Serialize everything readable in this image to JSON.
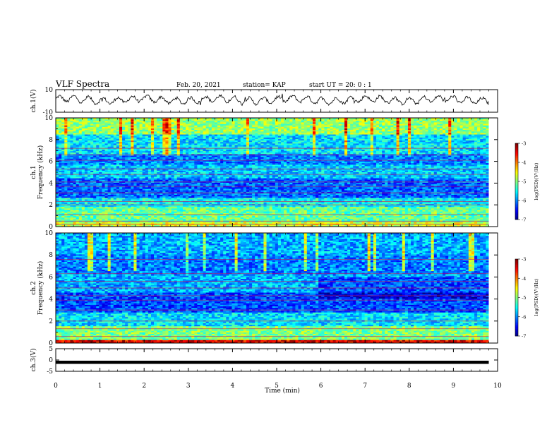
{
  "header": {
    "title": "VLF Spectra",
    "date": "Feb. 20, 2021",
    "station": "station= KAP",
    "start": "start  UT =   20: 0  : 1"
  },
  "chart_data": [
    {
      "id": "ch1-waveform",
      "type": "line",
      "ylabel": "ch.1(V)",
      "ylim": [
        -10,
        10
      ],
      "yticks": [
        "10",
        "-10"
      ],
      "xlim": [
        0,
        10
      ],
      "x_end_min": 9.8,
      "series": [
        {
          "summary": "noisy waveform oscillating roughly between -4 and 6 V with ~0.3 min period"
        }
      ]
    },
    {
      "id": "ch1-spectrogram",
      "type": "heatmap",
      "ylabel": "ch.1\nFrequency (kHz)",
      "ylim": [
        0,
        10
      ],
      "yticks": [
        "0",
        "2",
        "4",
        "6",
        "8",
        "10"
      ],
      "xlim": [
        0,
        10
      ],
      "x_end_min": 9.8,
      "bands_khz": [
        {
          "from": 0.0,
          "to": 0.35,
          "level": -4.6
        },
        {
          "from": 0.35,
          "to": 1.8,
          "level": -5.1
        },
        {
          "from": 1.8,
          "to": 2.6,
          "level": -5.5
        },
        {
          "from": 2.6,
          "to": 4.5,
          "level": -6.1
        },
        {
          "from": 4.5,
          "to": 5.7,
          "level": -5.7
        },
        {
          "from": 5.7,
          "to": 6.6,
          "level": -6.0
        },
        {
          "from": 6.6,
          "to": 8.5,
          "level": -5.6
        },
        {
          "from": 8.5,
          "to": 10.0,
          "level": -4.9
        }
      ],
      "lines_khz": [
        0.2,
        0.5,
        1.1,
        2.0,
        2.3,
        3.1,
        3.7,
        4.1,
        4.8,
        5.3,
        6.1,
        6.6,
        7.2
      ],
      "colorbar": {
        "label": "log(PSD)(V²/Hz)",
        "range": [
          -7,
          -3
        ],
        "ticks": [
          "-3",
          "-4",
          "-5",
          "-6",
          "-7"
        ]
      }
    },
    {
      "id": "ch2-spectrogram",
      "type": "heatmap",
      "ylabel": "ch.2\nFrequency (kHz)",
      "ylim": [
        0,
        10
      ],
      "yticks": [
        "0",
        "2",
        "4",
        "6",
        "8",
        "10"
      ],
      "xlim": [
        0,
        10
      ],
      "x_end_min": 9.8,
      "bands_khz": [
        {
          "from": 0.0,
          "to": 0.3,
          "level": -3.4
        },
        {
          "from": 0.3,
          "to": 1.5,
          "level": -5.0
        },
        {
          "from": 1.5,
          "to": 2.8,
          "level": -5.6
        },
        {
          "from": 2.8,
          "to": 4.6,
          "level": -6.2
        },
        {
          "from": 4.6,
          "to": 6.2,
          "level": -5.8
        },
        {
          "from": 6.2,
          "to": 8.0,
          "level": -6.0
        },
        {
          "from": 8.0,
          "to": 10.0,
          "level": -5.8
        }
      ],
      "lines_khz": [
        0.6,
        1.3,
        2.0,
        3.0,
        3.9,
        4.3,
        5.0,
        5.6,
        6.3,
        7.6
      ],
      "colorbar": {
        "label": "log(PSD)(V²/Hz)",
        "range": [
          -7,
          -3
        ],
        "ticks": [
          "-3",
          "-4",
          "-5",
          "-6",
          "-7"
        ]
      }
    },
    {
      "id": "ch3-waveform",
      "type": "line",
      "ylabel": "ch.3(V)",
      "ylim": [
        -5,
        5
      ],
      "yticks": [
        "5",
        "0",
        "-5"
      ],
      "xlim": [
        0,
        10
      ],
      "x_end_min": 9.8,
      "series": [
        {
          "summary": "dense near-constant signal around -1 V"
        }
      ]
    }
  ],
  "xaxis": {
    "label": "Time (min)",
    "ticks": [
      "0",
      "1",
      "2",
      "3",
      "4",
      "5",
      "6",
      "7",
      "8",
      "9",
      "10"
    ]
  }
}
